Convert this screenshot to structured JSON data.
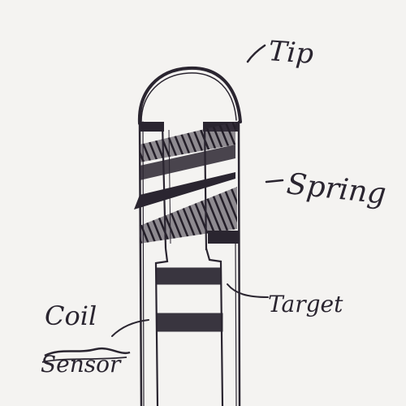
{
  "labels": {
    "tip": "Tip",
    "spring": "Spring",
    "target": "Target",
    "coil": "Coil",
    "sensor_crossed": "Sensor"
  },
  "colors": {
    "paper": "#f4f3f1",
    "ink": "#2a2530"
  }
}
